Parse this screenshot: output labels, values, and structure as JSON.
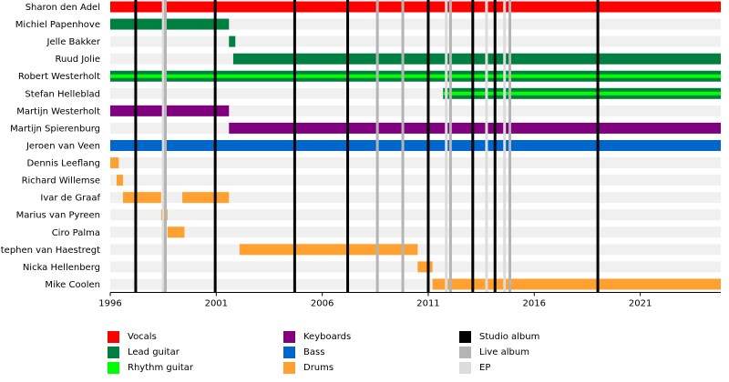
{
  "chart_data": {
    "type": "timeline",
    "x_axis": {
      "range": [
        1996,
        2024.8
      ],
      "ticks": [
        "1996",
        "2001",
        "2006",
        "2011",
        "2016",
        "2021"
      ]
    },
    "colors": {
      "Vocals": "#ff0000",
      "Lead guitar": "#008040",
      "Rhythm guitar": "#00ff00",
      "Keyboards": "#800080",
      "Bass": "#0066cc",
      "Drums": "#ffa030",
      "Studio album": "#000000",
      "Live album": "#b4b4b4",
      "EP": "#dcdcdc"
    },
    "members": [
      {
        "name": "Sharon den Adel",
        "periods": [
          {
            "role": "Vocals",
            "start": 1996,
            "end": 2024.8
          }
        ]
      },
      {
        "name": "Michiel Papenhove",
        "periods": [
          {
            "role": "Lead guitar",
            "start": 1996,
            "end": 2001.6
          }
        ]
      },
      {
        "name": "Jelle Bakker",
        "periods": [
          {
            "role": "Lead guitar",
            "start": 2001.6,
            "end": 2001.9
          }
        ]
      },
      {
        "name": "Ruud Jolie",
        "periods": [
          {
            "role": "Lead guitar",
            "start": 2001.8,
            "end": 2024.8
          }
        ]
      },
      {
        "name": "Robert Westerholt",
        "periods": [
          {
            "role": "Lead guitar",
            "start": 1996,
            "end": 2024.8
          },
          {
            "role": "Rhythm guitar",
            "start": 1996,
            "end": 2024.8
          }
        ]
      },
      {
        "name": "Stefan Helleblad",
        "periods": [
          {
            "role": "Lead guitar",
            "start": 2011.7,
            "end": 2024.8
          },
          {
            "role": "Rhythm guitar",
            "start": 2011.7,
            "end": 2024.8
          }
        ]
      },
      {
        "name": "Martijn Westerholt",
        "periods": [
          {
            "role": "Keyboards",
            "start": 1996,
            "end": 2001.6
          }
        ]
      },
      {
        "name": "Martijn Spierenburg",
        "periods": [
          {
            "role": "Keyboards",
            "start": 2001.6,
            "end": 2024.8
          }
        ]
      },
      {
        "name": "Jeroen van Veen",
        "periods": [
          {
            "role": "Bass",
            "start": 1996,
            "end": 2024.8
          }
        ]
      },
      {
        "name": "Dennis Leeflang",
        "periods": [
          {
            "role": "Drums",
            "start": 1996,
            "end": 1996.4
          }
        ]
      },
      {
        "name": "Richard Willemse",
        "periods": [
          {
            "role": "Drums",
            "start": 1996.3,
            "end": 1996.6
          }
        ]
      },
      {
        "name": "Ivar de Graaf",
        "periods": [
          {
            "role": "Drums",
            "start": 1996.6,
            "end": 1998.4
          },
          {
            "role": "Drums",
            "start": 1999.4,
            "end": 2001.6
          }
        ]
      },
      {
        "name": "Marius van Pyreen",
        "periods": [
          {
            "role": "Drums",
            "start": 1998.4,
            "end": 1998.7
          }
        ]
      },
      {
        "name": "Ciro Palma",
        "periods": [
          {
            "role": "Drums",
            "start": 1998.7,
            "end": 1999.5
          }
        ]
      },
      {
        "name": "Stephen van Haestregt",
        "periods": [
          {
            "role": "Drums",
            "start": 2002.1,
            "end": 2010.5
          }
        ]
      },
      {
        "name": "Nicka Hellenberg",
        "periods": [
          {
            "role": "Drums",
            "start": 2010.5,
            "end": 2011.2
          }
        ]
      },
      {
        "name": "Mike Coolen",
        "periods": [
          {
            "role": "Drums",
            "start": 2011.2,
            "end": 2024.8
          }
        ]
      }
    ],
    "release_lines": [
      {
        "type": "Studio album",
        "year": 1997.2
      },
      {
        "type": "EP",
        "year": 1998.5
      },
      {
        "type": "Live album",
        "year": 1998.6
      },
      {
        "type": "Studio album",
        "year": 2000.95
      },
      {
        "type": "Studio album",
        "year": 2004.7
      },
      {
        "type": "Studio album",
        "year": 2007.2
      },
      {
        "type": "Live album",
        "year": 2008.6
      },
      {
        "type": "Live album",
        "year": 2009.8
      },
      {
        "type": "Studio album",
        "year": 2011.0
      },
      {
        "type": "EP",
        "year": 2011.85
      },
      {
        "type": "Live album",
        "year": 2012.05
      },
      {
        "type": "Studio album",
        "year": 2013.1
      },
      {
        "type": "EP",
        "year": 2013.75
      },
      {
        "type": "Studio album",
        "year": 2014.15
      },
      {
        "type": "EP",
        "year": 2014.6
      },
      {
        "type": "Live album",
        "year": 2014.85
      },
      {
        "type": "Studio album",
        "year": 2019.0
      }
    ],
    "legend": [
      {
        "label": "Vocals",
        "color": "#ff0000"
      },
      {
        "label": "Lead guitar",
        "color": "#008040"
      },
      {
        "label": "Rhythm guitar",
        "color": "#00ff00"
      },
      {
        "label": "Keyboards",
        "color": "#800080"
      },
      {
        "label": "Bass",
        "color": "#0066cc"
      },
      {
        "label": "Drums",
        "color": "#ffa030"
      },
      {
        "label": "Studio album",
        "color": "#000000"
      },
      {
        "label": "Live album",
        "color": "#b4b4b4"
      },
      {
        "label": "EP",
        "color": "#dcdcdc"
      }
    ],
    "grid": true,
    "legend_position": "bottom"
  }
}
